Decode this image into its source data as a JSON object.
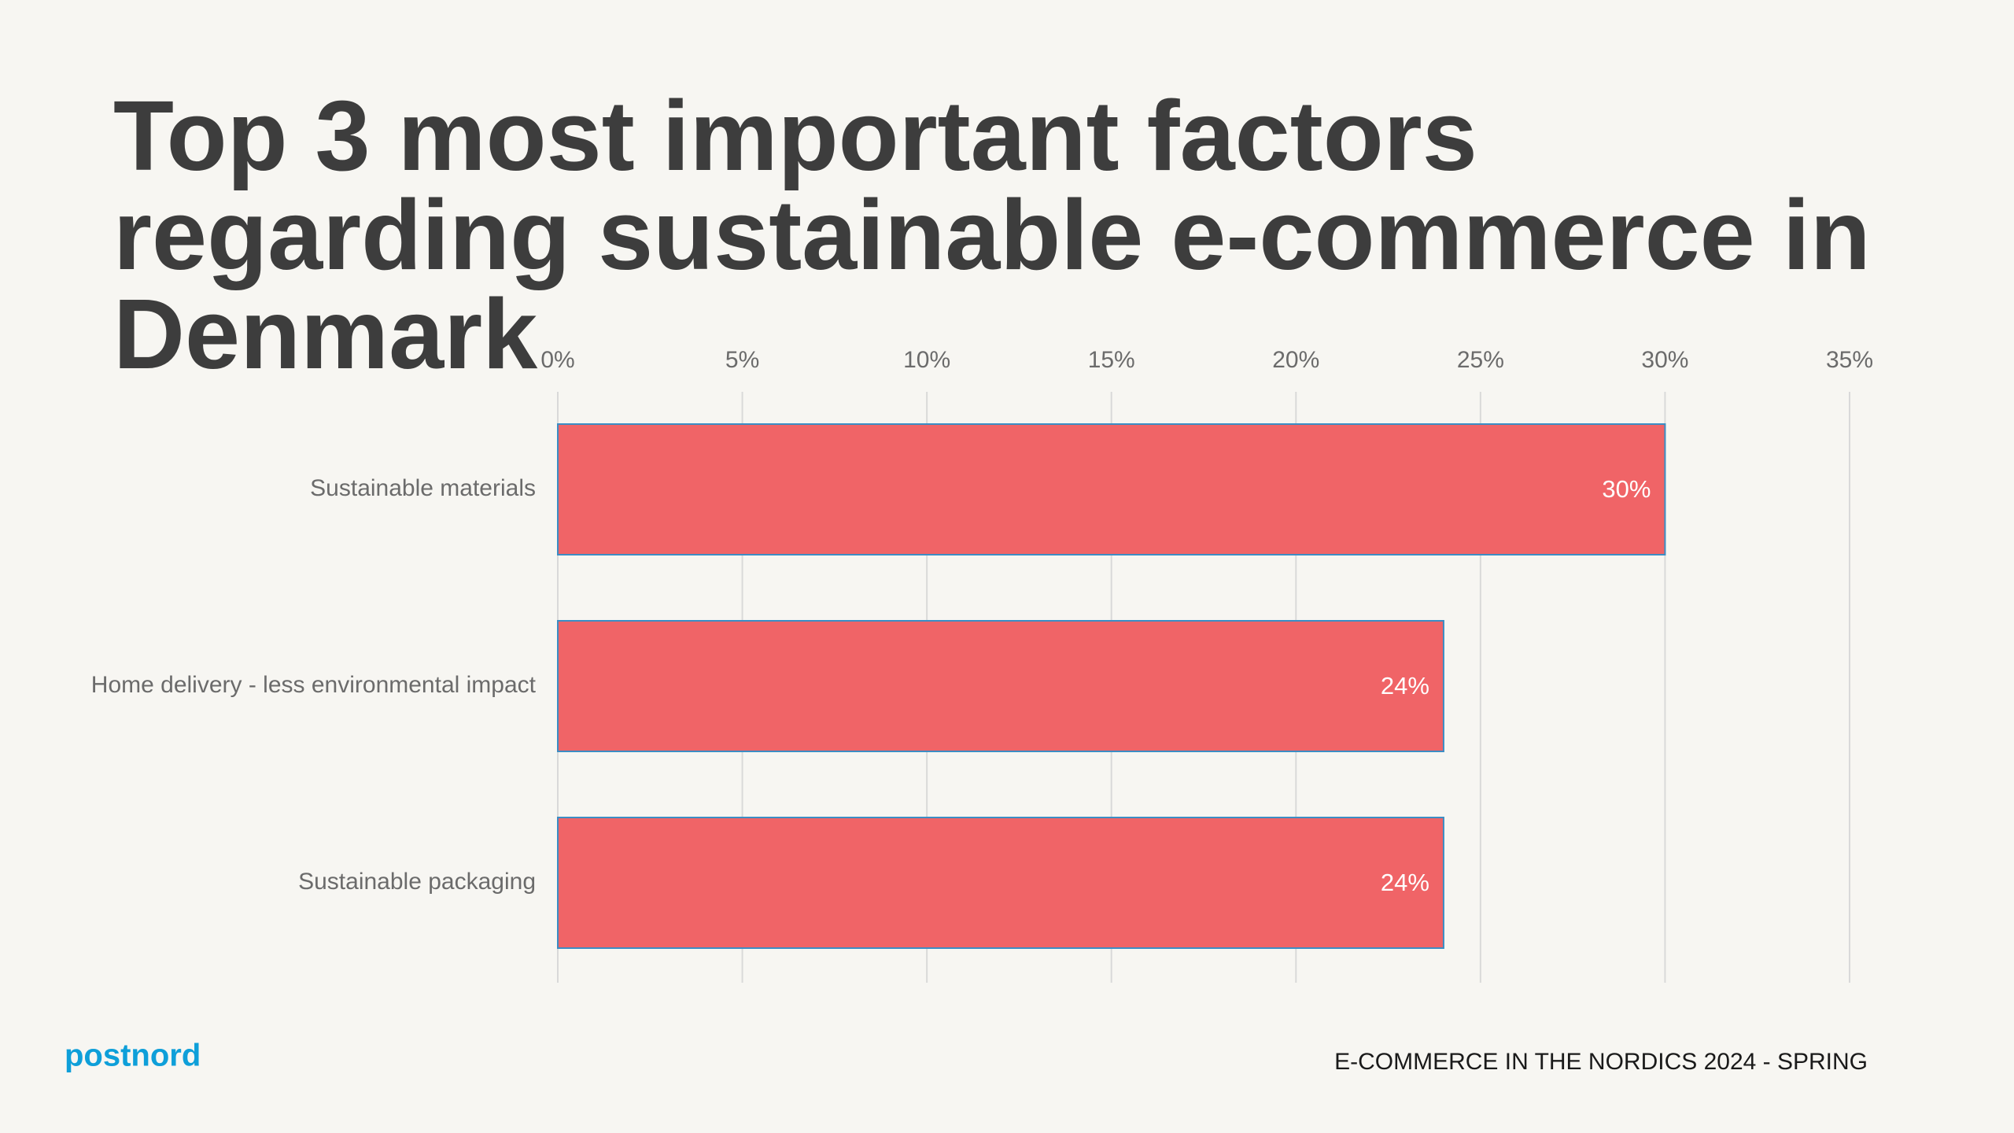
{
  "chart_data": {
    "type": "bar",
    "orientation": "horizontal",
    "title": "Top 3 most important factors regarding sustainable e-commerce in Denmark",
    "categories": [
      "Sustainable materials",
      "Home delivery - less environmental impact",
      "Sustainable packaging"
    ],
    "values": [
      30,
      24,
      24
    ],
    "value_labels": [
      "30%",
      "24%",
      "24%"
    ],
    "color": "#f06467",
    "xlim": [
      0,
      35
    ],
    "xticks": [
      {
        "value": 0,
        "label": "0%"
      },
      {
        "value": 5,
        "label": "5%"
      },
      {
        "value": 10,
        "label": "10%"
      },
      {
        "value": 15,
        "label": "15%"
      },
      {
        "value": 20,
        "label": "20%"
      },
      {
        "value": 25,
        "label": "25%"
      },
      {
        "value": 30,
        "label": "30%"
      },
      {
        "value": 35,
        "label": "35%"
      }
    ],
    "grid": true
  },
  "footer": {
    "logo": "postnord",
    "text": "E-COMMERCE IN THE NORDICS 2024 - SPRING"
  }
}
